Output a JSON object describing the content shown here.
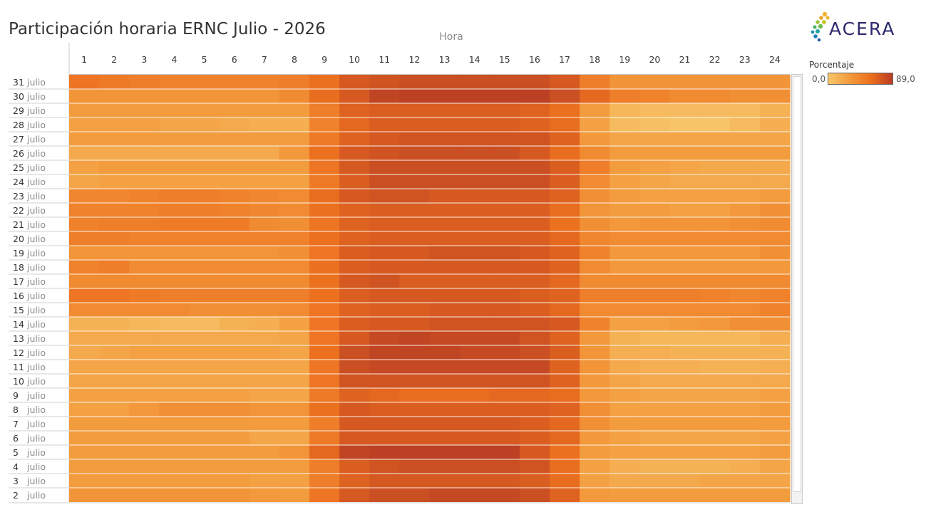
{
  "page": {
    "title": "Participación horaria ERNC Julio - 2026",
    "logo_text": "ACERA"
  },
  "legend": {
    "title": "Porcentaje",
    "min_label": "0,0",
    "max_label": "89,0",
    "colors": [
      "#f7c66a",
      "#f39a3c",
      "#ec6f1e",
      "#b83d24"
    ]
  },
  "chart_data": {
    "type": "heatmap",
    "title": "Participación horaria ERNC Julio - 2026",
    "xlabel": "Hora",
    "ylabel": "",
    "x": [
      "1",
      "2",
      "3",
      "4",
      "5",
      "6",
      "7",
      "8",
      "9",
      "10",
      "11",
      "12",
      "13",
      "14",
      "15",
      "16",
      "17",
      "18",
      "19",
      "20",
      "21",
      "22",
      "23",
      "24"
    ],
    "y": [
      {
        "day": "31",
        "month": "julio"
      },
      {
        "day": "30",
        "month": "julio"
      },
      {
        "day": "29",
        "month": "julio"
      },
      {
        "day": "28",
        "month": "julio"
      },
      {
        "day": "27",
        "month": "julio"
      },
      {
        "day": "26",
        "month": "julio"
      },
      {
        "day": "25",
        "month": "julio"
      },
      {
        "day": "24",
        "month": "julio"
      },
      {
        "day": "23",
        "month": "julio"
      },
      {
        "day": "22",
        "month": "julio"
      },
      {
        "day": "21",
        "month": "julio"
      },
      {
        "day": "20",
        "month": "julio"
      },
      {
        "day": "19",
        "month": "julio"
      },
      {
        "day": "18",
        "month": "julio"
      },
      {
        "day": "17",
        "month": "julio"
      },
      {
        "day": "16",
        "month": "julio"
      },
      {
        "day": "15",
        "month": "julio"
      },
      {
        "day": "14",
        "month": "julio"
      },
      {
        "day": "13",
        "month": "julio"
      },
      {
        "day": "12",
        "month": "julio"
      },
      {
        "day": "11",
        "month": "julio"
      },
      {
        "day": "10",
        "month": "julio"
      },
      {
        "day": "9",
        "month": "julio"
      },
      {
        "day": "8",
        "month": "julio"
      },
      {
        "day": "7",
        "month": "julio"
      },
      {
        "day": "6",
        "month": "julio"
      },
      {
        "day": "5",
        "month": "julio"
      },
      {
        "day": "4",
        "month": "julio"
      },
      {
        "day": "3",
        "month": "julio"
      },
      {
        "day": "2",
        "month": "julio"
      }
    ],
    "value_range": [
      0,
      89
    ],
    "values": [
      [
        62,
        60,
        58,
        56,
        56,
        56,
        56,
        58,
        64,
        74,
        76,
        78,
        78,
        78,
        78,
        78,
        74,
        58,
        48,
        48,
        48,
        48,
        48,
        48
      ],
      [
        48,
        48,
        48,
        48,
        48,
        48,
        48,
        52,
        66,
        74,
        82,
        84,
        84,
        84,
        84,
        84,
        78,
        68,
        58,
        56,
        52,
        52,
        50,
        50
      ],
      [
        44,
        44,
        44,
        44,
        44,
        44,
        44,
        44,
        58,
        70,
        72,
        72,
        72,
        72,
        72,
        70,
        64,
        44,
        32,
        30,
        30,
        30,
        30,
        34
      ],
      [
        42,
        42,
        42,
        40,
        40,
        38,
        36,
        36,
        56,
        68,
        72,
        72,
        72,
        72,
        72,
        70,
        66,
        42,
        30,
        28,
        26,
        26,
        30,
        36
      ],
      [
        44,
        44,
        44,
        44,
        44,
        44,
        44,
        44,
        60,
        70,
        74,
        76,
        76,
        76,
        76,
        76,
        70,
        46,
        40,
        40,
        40,
        40,
        40,
        40
      ],
      [
        38,
        38,
        38,
        38,
        38,
        38,
        38,
        46,
        64,
        74,
        76,
        78,
        78,
        78,
        78,
        74,
        66,
        52,
        44,
        44,
        44,
        44,
        44,
        44
      ],
      [
        42,
        44,
        44,
        44,
        44,
        44,
        44,
        44,
        62,
        74,
        78,
        78,
        78,
        78,
        78,
        78,
        72,
        58,
        44,
        42,
        40,
        38,
        38,
        38
      ],
      [
        40,
        42,
        42,
        42,
        42,
        42,
        42,
        42,
        60,
        72,
        78,
        78,
        78,
        78,
        78,
        78,
        72,
        52,
        42,
        40,
        38,
        38,
        38,
        38
      ],
      [
        54,
        54,
        56,
        58,
        58,
        56,
        54,
        52,
        66,
        74,
        76,
        76,
        74,
        74,
        74,
        74,
        70,
        50,
        44,
        42,
        42,
        42,
        42,
        44
      ],
      [
        56,
        56,
        56,
        58,
        58,
        56,
        54,
        52,
        64,
        70,
        72,
        72,
        72,
        72,
        72,
        72,
        66,
        48,
        44,
        44,
        42,
        42,
        46,
        50
      ],
      [
        56,
        58,
        58,
        60,
        60,
        60,
        52,
        50,
        62,
        70,
        72,
        72,
        72,
        72,
        72,
        72,
        64,
        50,
        46,
        48,
        48,
        48,
        50,
        52
      ],
      [
        58,
        58,
        56,
        56,
        56,
        56,
        56,
        56,
        64,
        70,
        72,
        72,
        72,
        72,
        72,
        72,
        68,
        54,
        52,
        52,
        52,
        52,
        52,
        52
      ],
      [
        48,
        48,
        48,
        48,
        48,
        48,
        48,
        50,
        62,
        72,
        74,
        74,
        76,
        76,
        76,
        74,
        70,
        56,
        46,
        46,
        46,
        46,
        46,
        50
      ],
      [
        56,
        58,
        52,
        52,
        52,
        52,
        52,
        52,
        64,
        72,
        74,
        74,
        74,
        74,
        74,
        74,
        70,
        52,
        46,
        46,
        46,
        46,
        46,
        46
      ],
      [
        52,
        52,
        52,
        52,
        52,
        52,
        52,
        52,
        64,
        74,
        76,
        72,
        72,
        72,
        72,
        72,
        68,
        52,
        52,
        52,
        52,
        52,
        52,
        52
      ],
      [
        62,
        62,
        60,
        58,
        58,
        58,
        58,
        58,
        64,
        72,
        74,
        74,
        74,
        74,
        74,
        72,
        70,
        58,
        58,
        58,
        58,
        56,
        54,
        56
      ],
      [
        52,
        52,
        52,
        52,
        50,
        50,
        50,
        52,
        62,
        70,
        72,
        72,
        74,
        74,
        74,
        72,
        68,
        52,
        52,
        52,
        52,
        52,
        52,
        56
      ],
      [
        34,
        34,
        32,
        30,
        30,
        34,
        36,
        42,
        62,
        72,
        74,
        74,
        76,
        76,
        76,
        76,
        74,
        56,
        42,
        42,
        44,
        46,
        50,
        50
      ],
      [
        38,
        38,
        38,
        38,
        38,
        38,
        38,
        40,
        62,
        74,
        80,
        82,
        80,
        80,
        80,
        76,
        70,
        46,
        34,
        32,
        32,
        32,
        32,
        36
      ],
      [
        38,
        40,
        42,
        42,
        42,
        42,
        42,
        40,
        64,
        78,
        82,
        82,
        82,
        80,
        80,
        78,
        72,
        48,
        36,
        36,
        34,
        34,
        34,
        34
      ],
      [
        40,
        40,
        40,
        40,
        40,
        40,
        40,
        40,
        62,
        78,
        80,
        80,
        80,
        80,
        80,
        80,
        70,
        48,
        38,
        36,
        36,
        34,
        34,
        36
      ],
      [
        40,
        40,
        40,
        40,
        40,
        40,
        40,
        40,
        62,
        76,
        76,
        76,
        76,
        76,
        76,
        76,
        70,
        46,
        40,
        38,
        38,
        38,
        38,
        38
      ],
      [
        42,
        42,
        42,
        42,
        42,
        42,
        40,
        40,
        60,
        70,
        68,
        66,
        66,
        66,
        68,
        68,
        66,
        46,
        42,
        40,
        40,
        40,
        40,
        42
      ],
      [
        42,
        42,
        46,
        50,
        50,
        50,
        48,
        48,
        64,
        74,
        72,
        72,
        72,
        72,
        72,
        72,
        70,
        50,
        42,
        42,
        42,
        42,
        42,
        44
      ],
      [
        44,
        44,
        44,
        44,
        44,
        44,
        44,
        44,
        58,
        74,
        74,
        74,
        74,
        74,
        74,
        72,
        68,
        50,
        44,
        44,
        44,
        44,
        44,
        44
      ],
      [
        44,
        44,
        44,
        44,
        44,
        44,
        40,
        40,
        60,
        74,
        74,
        74,
        74,
        74,
        74,
        72,
        68,
        46,
        42,
        40,
        40,
        40,
        40,
        42
      ],
      [
        44,
        44,
        44,
        44,
        44,
        44,
        44,
        48,
        68,
        82,
        84,
        84,
        84,
        84,
        84,
        74,
        64,
        44,
        42,
        42,
        42,
        42,
        42,
        44
      ],
      [
        44,
        44,
        44,
        44,
        44,
        44,
        44,
        44,
        58,
        72,
        76,
        78,
        78,
        78,
        78,
        76,
        66,
        42,
        36,
        34,
        34,
        34,
        36,
        40
      ],
      [
        44,
        44,
        44,
        44,
        44,
        44,
        42,
        42,
        58,
        70,
        74,
        74,
        74,
        74,
        74,
        72,
        66,
        42,
        38,
        38,
        38,
        40,
        40,
        40
      ],
      [
        48,
        48,
        48,
        48,
        48,
        48,
        46,
        44,
        62,
        74,
        78,
        78,
        80,
        80,
        80,
        78,
        70,
        46,
        44,
        44,
        44,
        44,
        44,
        44
      ]
    ]
  }
}
